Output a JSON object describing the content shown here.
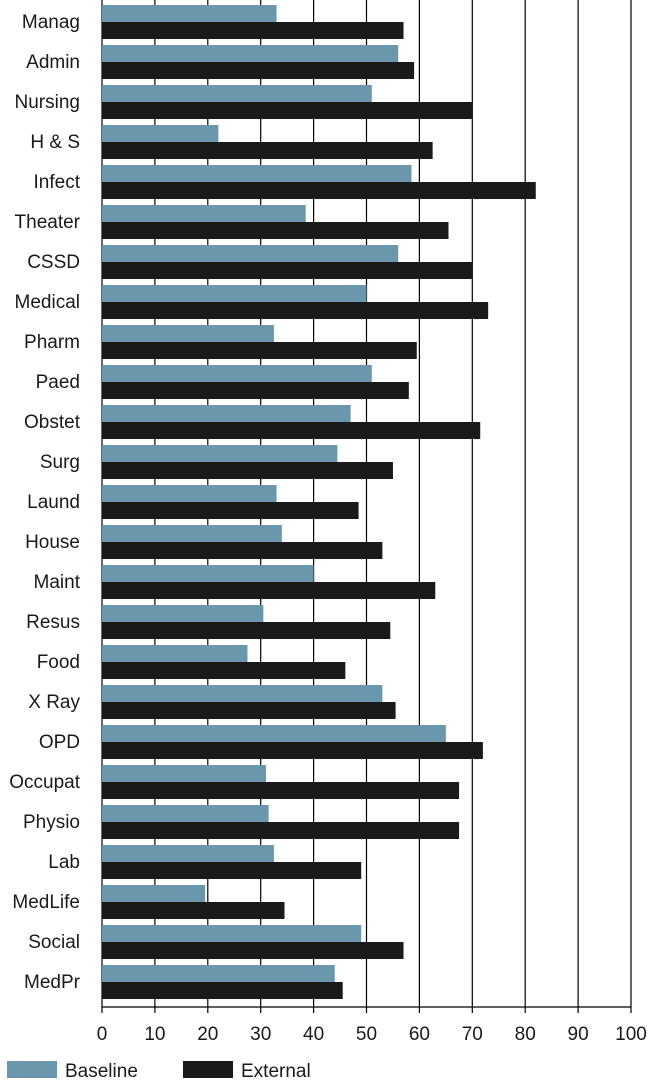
{
  "chart_data": {
    "type": "bar",
    "orientation": "horizontal",
    "title": "",
    "xlabel": "",
    "ylabel": "",
    "xlim": [
      0,
      100
    ],
    "x_ticks": [
      0,
      10,
      20,
      30,
      40,
      50,
      60,
      70,
      80,
      90,
      100
    ],
    "grid": "vertical lines at each major tick",
    "legend_position": "bottom-left",
    "categories": [
      "Manag",
      "Admin",
      "Nursing",
      "H & S",
      "Infect",
      "Theater",
      "CSSD",
      "Medical",
      "Pharm",
      "Paed",
      "Obstet",
      "Surg",
      "Laund",
      "House",
      "Maint",
      "Resus",
      "Food",
      "X Ray",
      "OPD",
      "Occupat",
      "Physio",
      "Lab",
      "MedLife",
      "Social",
      "MedPr"
    ],
    "series": [
      {
        "name": "Baseline",
        "color": "#6b97ad",
        "values": [
          33,
          56,
          51,
          22,
          58.5,
          38.5,
          56,
          50,
          32.5,
          51,
          47,
          44.5,
          33,
          34,
          40,
          30.5,
          27.5,
          53,
          65,
          31,
          31.5,
          32.5,
          19.5,
          49,
          44
        ]
      },
      {
        "name": "External",
        "color": "#1c1919",
        "values": [
          57,
          59,
          70,
          62.5,
          82,
          65.5,
          70,
          73,
          59.5,
          58,
          71.5,
          55,
          48.5,
          53,
          63,
          54.5,
          46,
          55.5,
          72,
          67.5,
          67.5,
          49,
          34.5,
          57,
          45.5
        ]
      }
    ]
  }
}
